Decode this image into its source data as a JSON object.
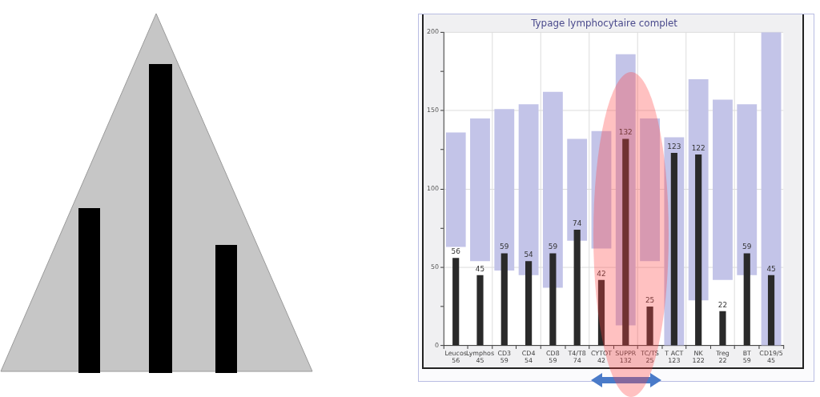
{
  "chart_data": {
    "type": "bar",
    "title": "Typage lymphocytaire complet",
    "categories": [
      "Leucos",
      "Lymphos",
      "CD3",
      "CD4",
      "CD8",
      "T4/T8",
      "CYTOT",
      "SUPPR",
      "TC/TS",
      "T ACT",
      "NK",
      "Treg",
      "BT",
      "CD19/5"
    ],
    "series": [
      {
        "color": "#c3c4e8",
        "base": [
          63,
          54,
          48,
          45,
          37,
          67,
          62,
          13,
          54,
          0,
          29,
          42,
          45,
          0
        ],
        "values": [
          73,
          91,
          103,
          109,
          125,
          65,
          75,
          173,
          91,
          133,
          141,
          115,
          109,
          200
        ]
      },
      {
        "color": "#2a2a2a",
        "values": [
          56,
          45,
          59,
          54,
          59,
          74,
          42,
          132,
          25,
          123,
          122,
          22,
          59,
          45
        ],
        "value_labels": [
          "56",
          "45",
          "59",
          "54",
          "59",
          "74",
          "42",
          "132",
          "25",
          "123",
          "122",
          "22",
          "59",
          "45"
        ]
      }
    ],
    "ylim": [
      0,
      200
    ],
    "yticks": [
      0,
      {
        "value": 25,
        "label": null
      },
      50,
      {
        "value": 75,
        "label": null
      },
      100,
      {
        "value": 125,
        "label": null
      },
      150,
      {
        "value": 175,
        "label": null
      },
      200
    ],
    "grid": true
  }
}
